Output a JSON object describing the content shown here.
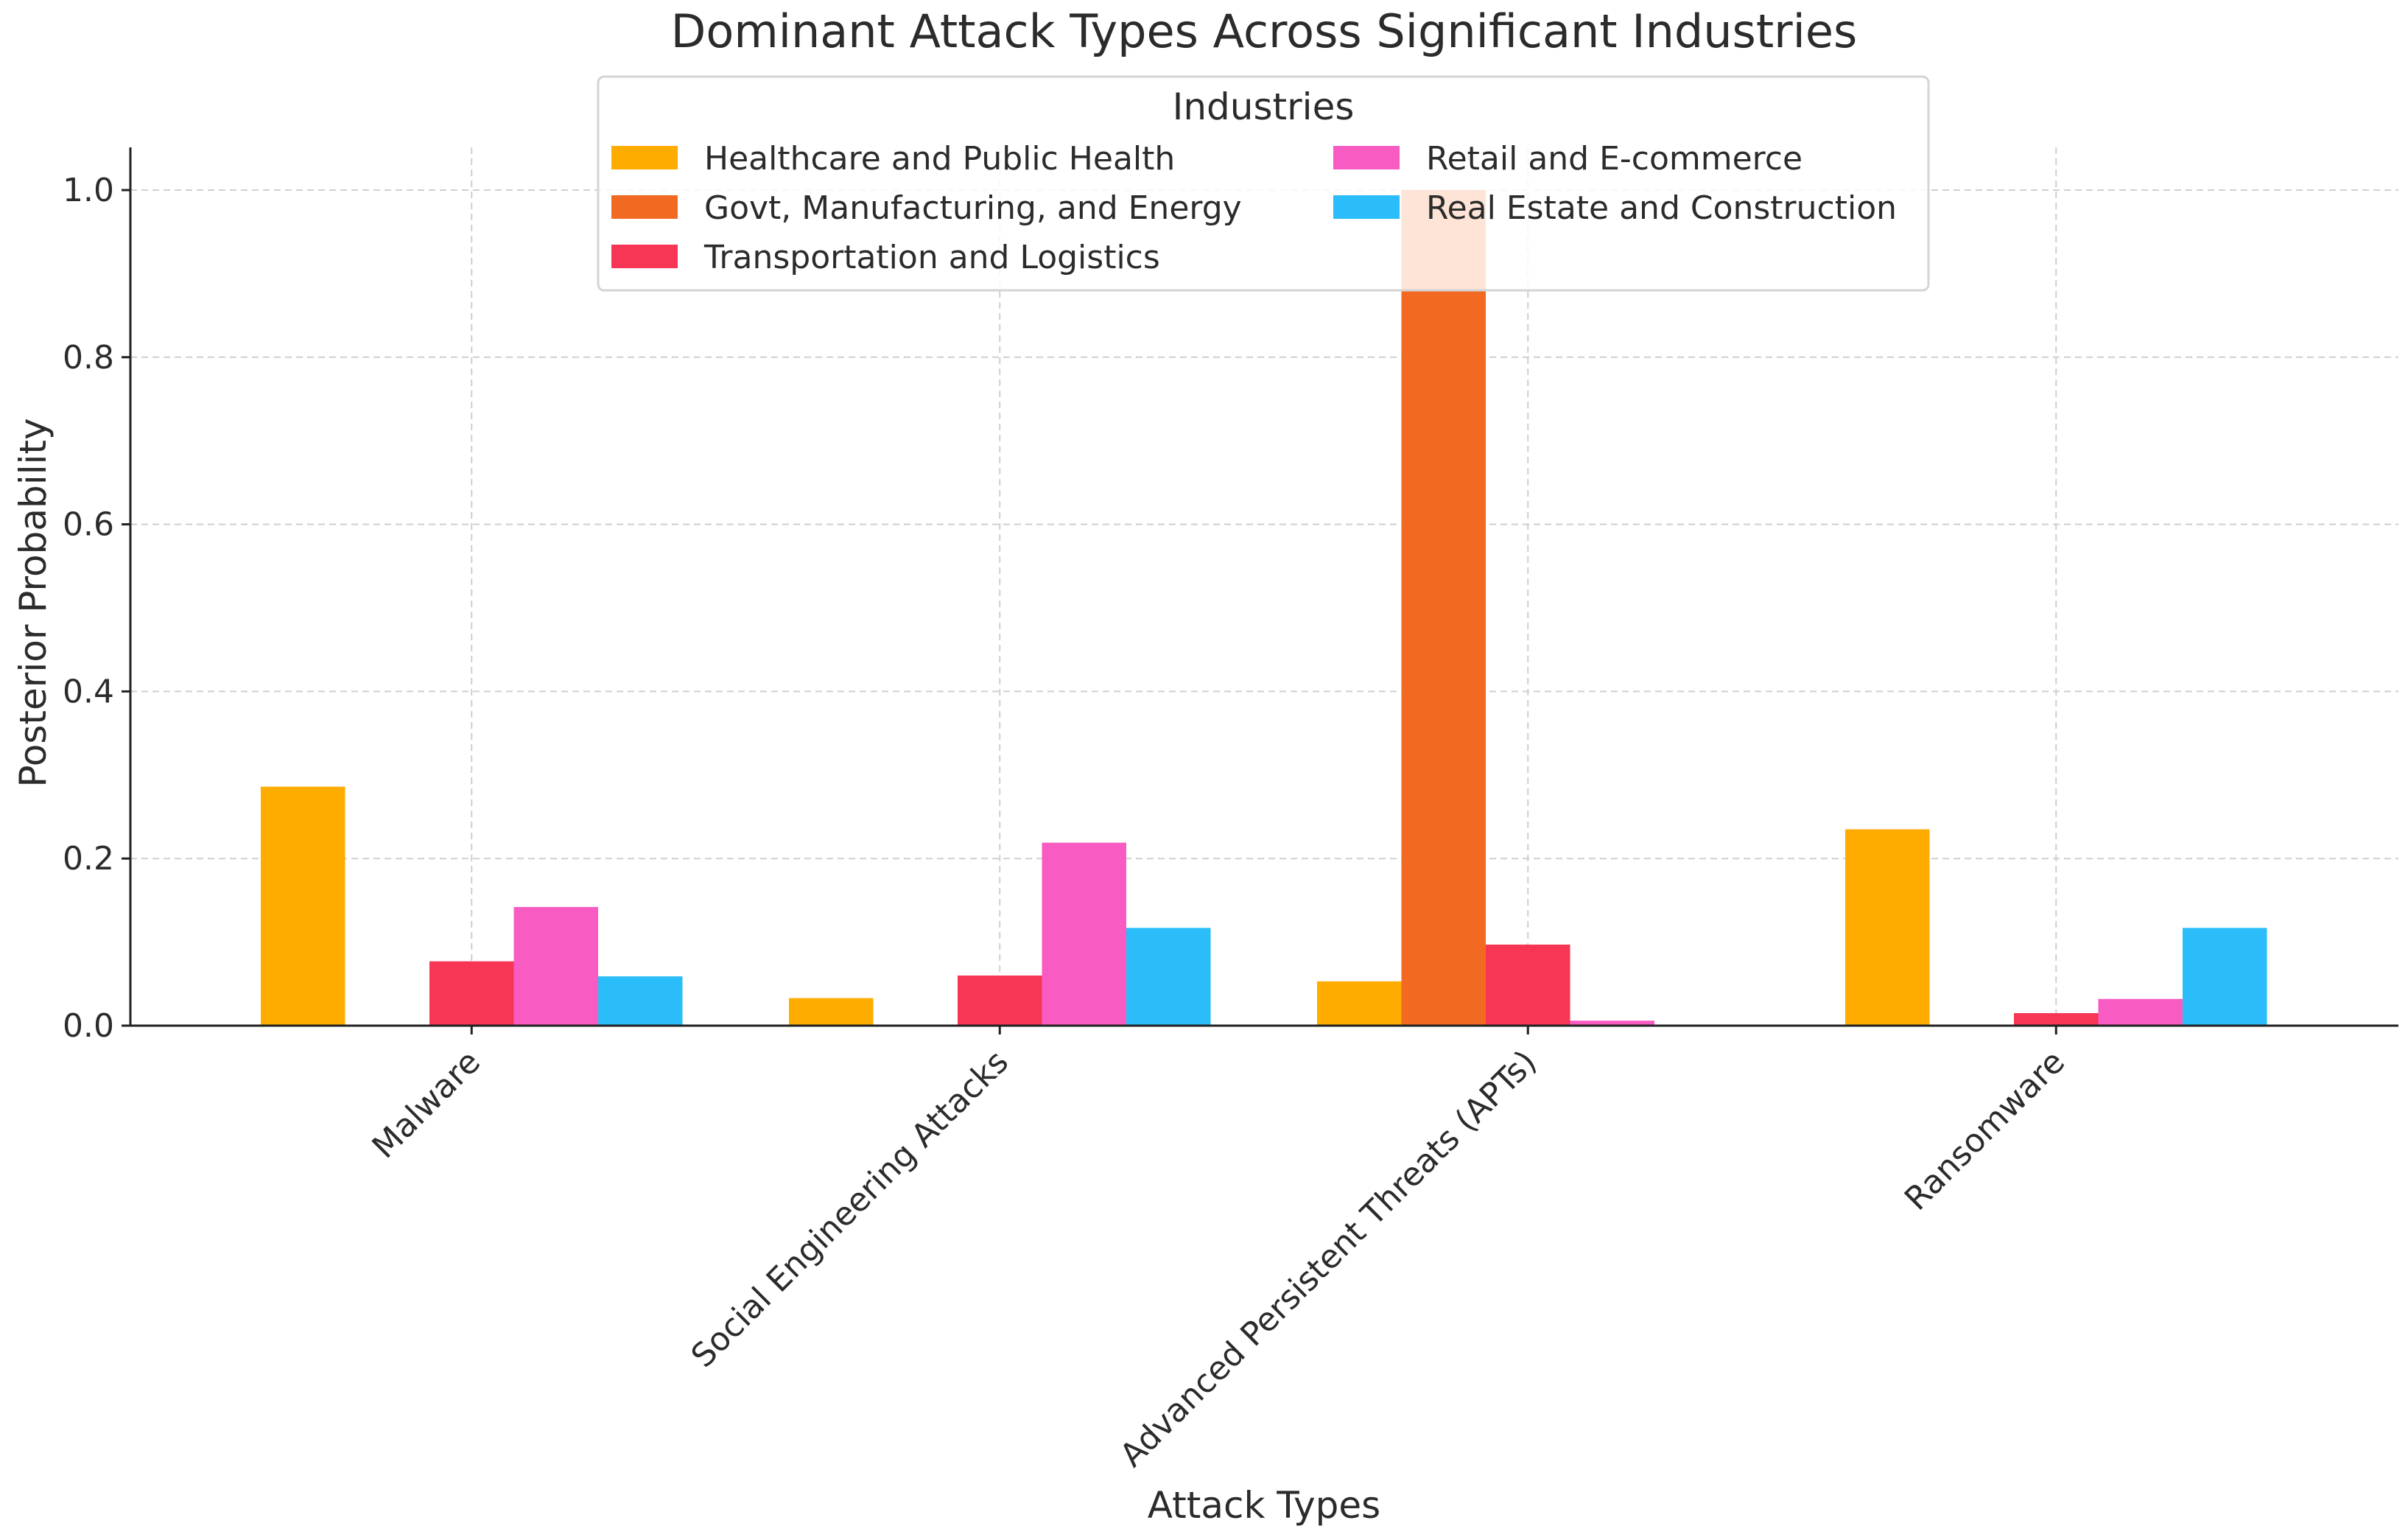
{
  "chart_data": {
    "type": "bar",
    "title": "Dominant Attack Types Across Significant Industries",
    "xlabel": "Attack Types",
    "ylabel": "Posterior Probability",
    "ylim": [
      0,
      1.05
    ],
    "yticks": [
      "0.0",
      "0.2",
      "0.4",
      "0.6",
      "0.8",
      "1.0"
    ],
    "grid": true,
    "legend_title": "Industries",
    "legend_position": "top-center",
    "categories": [
      "Malware",
      "Social Engineering Attacks",
      "Advanced Persistent Threats (APTs)",
      "Ransomware"
    ],
    "series": [
      {
        "name": "Healthcare and Public Health",
        "color": "#FFAC00",
        "values": [
          0.286,
          0.033,
          0.053,
          0.235
        ]
      },
      {
        "name": "Govt, Manufacturing, and Energy",
        "color": "#F26A22",
        "values": [
          0.0,
          0.0,
          1.0,
          0.0
        ]
      },
      {
        "name": "Transportation and Logistics",
        "color": "#F73656",
        "values": [
          0.077,
          0.06,
          0.097,
          0.015
        ]
      },
      {
        "name": "Retail and E-commerce",
        "color": "#F85CC2",
        "values": [
          0.142,
          0.219,
          0.006,
          0.032
        ]
      },
      {
        "name": "Real Estate and Construction",
        "color": "#2BBDF9",
        "values": [
          0.059,
          0.117,
          0.0,
          0.117
        ]
      }
    ]
  }
}
